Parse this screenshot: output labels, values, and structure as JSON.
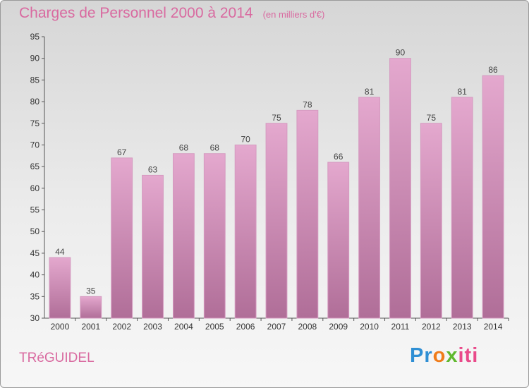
{
  "chart_data": {
    "type": "bar",
    "title": "Charges de Personnel 2000 à 2014",
    "subtitle": "(en milliers d'€)",
    "categories": [
      "2000",
      "2001",
      "2002",
      "2003",
      "2004",
      "2005",
      "2006",
      "2007",
      "2008",
      "2009",
      "2010",
      "2011",
      "2012",
      "2013",
      "2014"
    ],
    "values": [
      44,
      35,
      67,
      63,
      68,
      68,
      70,
      75,
      78,
      66,
      81,
      90,
      75,
      81,
      86
    ],
    "ylim": [
      30,
      95
    ],
    "yticks": [
      30,
      35,
      40,
      45,
      50,
      55,
      60,
      65,
      70,
      75,
      80,
      85,
      90,
      95
    ],
    "grid": false,
    "bar_color_top": "#e4a8ce",
    "bar_color_bottom": "#b06e98"
  },
  "footer": {
    "town": "TRéGUIDEL",
    "logo": {
      "part1": "Pr",
      "part2": "o",
      "part3": "x",
      "part4": "iti"
    }
  }
}
